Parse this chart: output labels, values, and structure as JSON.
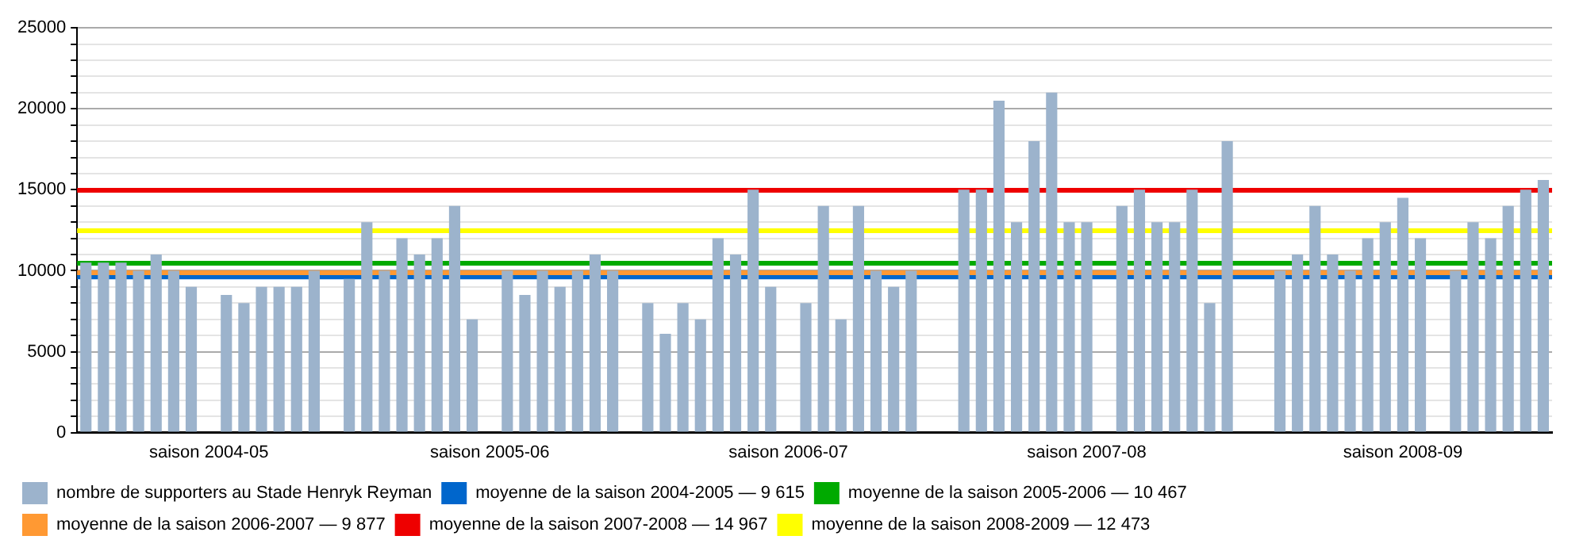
{
  "chart_data": {
    "type": "bar",
    "categories": [
      null,
      null,
      null,
      null,
      null,
      null,
      null,
      "saison 2004-05",
      null,
      null,
      null,
      null,
      null,
      null,
      null,
      null,
      null,
      null,
      null,
      null,
      null,
      null,
      null,
      "saison 2005-06",
      null,
      null,
      null,
      null,
      null,
      null,
      null,
      null,
      null,
      null,
      null,
      null,
      null,
      null,
      null,
      null,
      "saison 2006-07",
      null,
      null,
      null,
      null,
      null,
      null,
      null,
      null,
      null,
      null,
      null,
      null,
      null,
      null,
      null,
      null,
      "saison 2007-08",
      null,
      null,
      null,
      null,
      null,
      null,
      null,
      null,
      null,
      null,
      null,
      null,
      null,
      null,
      null,
      null,
      null,
      "saison 2008-09",
      null,
      null,
      null,
      null,
      null,
      null,
      null,
      null
    ],
    "series": [
      {
        "name": "nombre de supporters au Stade Henryk Reyman",
        "color": "#9cb3cc",
        "values": [
          10500,
          10500,
          10500,
          10000,
          11000,
          10000,
          9000,
          null,
          8500,
          8000,
          9000,
          9000,
          9000,
          10000,
          null,
          9500,
          13000,
          10000,
          12000,
          11000,
          12000,
          14000,
          7000,
          null,
          10000,
          8500,
          10000,
          9000,
          10000,
          11000,
          10000,
          null,
          8000,
          6100,
          8000,
          7000,
          12000,
          11000,
          15000,
          9000,
          null,
          8000,
          14000,
          7000,
          14000,
          10000,
          9000,
          10000,
          null,
          null,
          15000,
          15000,
          20500,
          13000,
          18000,
          21000,
          13000,
          13000,
          null,
          14000,
          15000,
          13000,
          13000,
          15000,
          8000,
          18000,
          null,
          null,
          10000,
          11000,
          14000,
          11000,
          10000,
          12000,
          13000,
          14500,
          12000,
          null,
          10000,
          13000,
          12000,
          14000,
          15000,
          15600
        ]
      }
    ],
    "ref_lines": [
      {
        "axis": "y",
        "value": 9615,
        "label": "moyenne de la saison 2004-2005 — 9 615",
        "color": "#0066cc"
      },
      {
        "axis": "y",
        "value": 10467,
        "label": "moyenne de la saison 2005-2006 — 10 467",
        "color": "#00aa00"
      },
      {
        "axis": "y",
        "value": 9877,
        "label": "moyenne de la saison 2006-2007 — 9 877",
        "color": "#ff9933"
      },
      {
        "axis": "y",
        "value": 14967,
        "label": "moyenne de la saison 2007-2008 — 14 967",
        "color": "#ee0000"
      },
      {
        "axis": "y",
        "value": 12473,
        "label": "moyenne de la saison 2008-2009 — 12 473",
        "color": "#ffff00"
      }
    ],
    "ylim": [
      0,
      25000
    ],
    "yticks": [
      0,
      {
        "value": 1000,
        "label": null
      },
      {
        "value": 2000,
        "label": null
      },
      {
        "value": 3000,
        "label": null
      },
      {
        "value": 4000,
        "label": null
      },
      5000,
      {
        "value": 6000,
        "label": null
      },
      {
        "value": 7000,
        "label": null
      },
      {
        "value": 8000,
        "label": null
      },
      {
        "value": 9000,
        "label": null
      },
      10000,
      {
        "value": 11000,
        "label": null
      },
      {
        "value": 12000,
        "label": null
      },
      {
        "value": 13000,
        "label": null
      },
      {
        "value": 14000,
        "label": null
      },
      15000,
      {
        "value": 16000,
        "label": null
      },
      {
        "value": 17000,
        "label": null
      },
      {
        "value": 18000,
        "label": null
      },
      {
        "value": 19000,
        "label": null
      },
      20000,
      {
        "value": 21000,
        "label": null
      },
      {
        "value": 22000,
        "label": null
      },
      {
        "value": 23000,
        "label": null
      },
      {
        "value": 24000,
        "label": null
      },
      25000
    ],
    "grid": "y",
    "legend": "bottom"
  }
}
